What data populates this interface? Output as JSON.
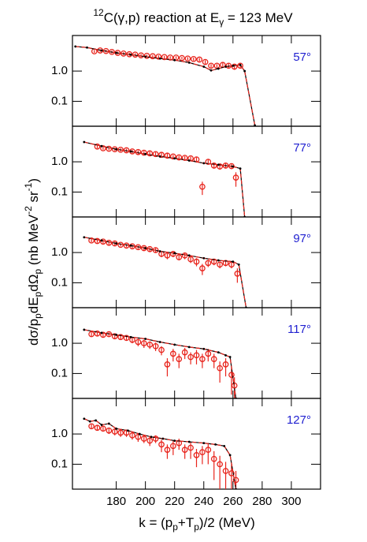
{
  "figure": {
    "title": [
      {
        "text": "12",
        "script": "sup"
      },
      {
        "text": "C(γ,p) reaction at E"
      },
      {
        "text": "γ",
        "script": "sub"
      },
      {
        "text": " = 123 MeV"
      }
    ],
    "ylabel": [
      {
        "text": "dσ/p"
      },
      {
        "text": "p",
        "script": "sub"
      },
      {
        "text": "dE"
      },
      {
        "text": "p",
        "script": "sub"
      },
      {
        "text": "dΩ"
      },
      {
        "text": "p",
        "script": "sub"
      },
      {
        "text": " (nb MeV"
      },
      {
        "text": "-2",
        "script": "sup"
      },
      {
        "text": " sr"
      },
      {
        "text": "-1",
        "script": "sup"
      },
      {
        "text": ")"
      }
    ],
    "xlabel": [
      {
        "text": "k = (p"
      },
      {
        "text": "p",
        "script": "sub"
      },
      {
        "text": "+T"
      },
      {
        "text": "p",
        "script": "sub"
      },
      {
        "text": ")/2 (MeV)"
      }
    ]
  },
  "chart_data": [
    {
      "type": "line",
      "annotation": "57°",
      "annotation_color": "#1f1fd0",
      "log_y": true,
      "xlim": [
        150,
        320
      ],
      "xticks": [
        180,
        200,
        220,
        240,
        260,
        280,
        300
      ],
      "ylim": [
        0.015,
        15
      ],
      "yticks": [
        {
          "value": 1,
          "label": "1.0"
        },
        0.1
      ],
      "series": [
        {
          "color": "#e8241c",
          "marker": "circle",
          "x": [
            165,
            169,
            173,
            177,
            181,
            185,
            189,
            193,
            197,
            201,
            205,
            209,
            213,
            217,
            221,
            225,
            229,
            233,
            237,
            241,
            245,
            249,
            253,
            257,
            261,
            265
          ],
          "values": [
            4.5,
            4.8,
            4.6,
            4.3,
            4.0,
            3.8,
            3.6,
            3.5,
            3.3,
            3.2,
            3.1,
            3.0,
            2.9,
            2.8,
            2.8,
            2.7,
            2.6,
            2.5,
            2.4,
            2.0,
            1.5,
            1.5,
            1.6,
            1.5,
            1.4,
            1.5
          ],
          "errors": [
            0.5,
            0.5,
            0.5,
            0.5,
            0.4,
            0.4,
            0.4,
            0.4,
            0.4,
            0.3,
            0.3,
            0.3,
            0.3,
            0.3,
            0.3,
            0.3,
            0.3,
            0.3,
            0.3,
            0.3,
            0.2,
            0.2,
            0.3,
            0.3,
            0.3,
            0.3
          ]
        },
        {
          "color": "#000000",
          "overlay_color": "#e8241c",
          "x": [
            152,
            160,
            170,
            180,
            190,
            200,
            210,
            220,
            230,
            240,
            245,
            250,
            255,
            260,
            265,
            268,
            275
          ],
          "values": [
            6.5,
            6.0,
            4.8,
            4.0,
            3.5,
            3.0,
            2.6,
            2.3,
            1.9,
            1.4,
            1.05,
            1.2,
            1.4,
            1.5,
            1.6,
            1.0,
            0.016
          ]
        }
      ]
    },
    {
      "type": "line",
      "annotation": "77°",
      "annotation_color": "#1f1fd0",
      "log_y": true,
      "xlim": [
        150,
        320
      ],
      "xticks": [
        180,
        200,
        220,
        240,
        260,
        280,
        300
      ],
      "ylim": [
        0.015,
        15
      ],
      "yticks": [
        {
          "value": 1,
          "label": "1.0"
        },
        0.1
      ],
      "series": [
        {
          "color": "#e8241c",
          "marker": "circle",
          "x": [
            167,
            171,
            175,
            179,
            183,
            187,
            191,
            195,
            199,
            203,
            207,
            211,
            215,
            219,
            223,
            227,
            231,
            235,
            239,
            243,
            247,
            251,
            255,
            259,
            262
          ],
          "values": [
            3.2,
            2.8,
            2.7,
            2.6,
            2.5,
            2.4,
            2.2,
            2.1,
            2.0,
            1.9,
            1.8,
            1.7,
            1.6,
            1.5,
            1.4,
            1.35,
            1.3,
            1.2,
            0.15,
            1.0,
            0.75,
            0.7,
            0.75,
            0.72,
            0.3
          ],
          "errors": [
            0.4,
            0.3,
            0.3,
            0.3,
            0.3,
            0.3,
            0.3,
            0.3,
            0.3,
            0.3,
            0.3,
            0.3,
            0.3,
            0.2,
            0.2,
            0.2,
            0.2,
            0.2,
            0.07,
            0.2,
            0.15,
            0.15,
            0.15,
            0.15,
            0.15
          ]
        },
        {
          "color": "#000000",
          "overlay_color": "#e8241c",
          "x": [
            158,
            170,
            180,
            190,
            200,
            210,
            220,
            230,
            240,
            250,
            260,
            265,
            268
          ],
          "values": [
            4.5,
            3.3,
            2.6,
            2.2,
            1.8,
            1.5,
            1.3,
            1.1,
            0.9,
            0.8,
            0.7,
            0.6,
            0.015
          ]
        }
      ]
    },
    {
      "type": "line",
      "annotation": "97°",
      "annotation_color": "#1f1fd0",
      "log_y": true,
      "xlim": [
        150,
        320
      ],
      "xticks": [
        180,
        200,
        220,
        240,
        260,
        280,
        300
      ],
      "ylim": [
        0.015,
        15
      ],
      "yticks": [
        {
          "value": 1,
          "label": "1.0"
        },
        0.1
      ],
      "series": [
        {
          "color": "#e8241c",
          "marker": "circle",
          "x": [
            163,
            167,
            171,
            175,
            179,
            183,
            187,
            191,
            195,
            199,
            203,
            207,
            211,
            215,
            219,
            223,
            227,
            231,
            235,
            239,
            243,
            247,
            251,
            255,
            259,
            263
          ],
          "values": [
            2.5,
            2.4,
            2.3,
            2.1,
            2.0,
            1.8,
            1.7,
            1.6,
            1.5,
            1.4,
            1.3,
            1.2,
            0.9,
            0.8,
            0.9,
            0.7,
            0.8,
            0.6,
            0.5,
            0.3,
            0.45,
            0.5,
            0.4,
            0.45,
            0.4,
            0.2
          ],
          "errors": [
            0.3,
            0.3,
            0.3,
            0.3,
            0.3,
            0.2,
            0.2,
            0.2,
            0.2,
            0.2,
            0.2,
            0.2,
            0.2,
            0.2,
            0.2,
            0.15,
            0.2,
            0.15,
            0.15,
            0.12,
            0.12,
            0.12,
            0.1,
            0.1,
            0.1,
            0.1
          ]
        },
        {
          "color": "#000000",
          "overlay_color": "#e8241c",
          "x": [
            158,
            170,
            180,
            190,
            200,
            210,
            220,
            230,
            240,
            250,
            260,
            264,
            269
          ],
          "values": [
            3.2,
            2.5,
            2.0,
            1.7,
            1.4,
            1.1,
            0.95,
            0.8,
            0.65,
            0.55,
            0.5,
            0.4,
            0.015
          ]
        }
      ]
    },
    {
      "type": "line",
      "annotation": "117°",
      "annotation_color": "#1f1fd0",
      "log_y": true,
      "xlim": [
        150,
        320
      ],
      "xticks": [
        180,
        200,
        220,
        240,
        260,
        280,
        300
      ],
      "ylim": [
        0.015,
        15
      ],
      "yticks": [
        {
          "value": 1,
          "label": "1.0"
        },
        0.1
      ],
      "series": [
        {
          "color": "#e8241c",
          "marker": "circle",
          "x": [
            163,
            167,
            171,
            175,
            179,
            183,
            187,
            191,
            195,
            199,
            203,
            207,
            211,
            215,
            219,
            223,
            227,
            231,
            235,
            239,
            243,
            247,
            251,
            255,
            259,
            261
          ],
          "values": [
            2.0,
            2.1,
            1.9,
            2.0,
            1.7,
            1.6,
            1.5,
            1.3,
            1.1,
            1.0,
            0.9,
            0.8,
            0.6,
            0.2,
            0.45,
            0.3,
            0.5,
            0.35,
            0.4,
            0.3,
            0.45,
            0.3,
            0.15,
            0.2,
            0.09,
            0.04
          ],
          "errors": [
            0.3,
            0.3,
            0.3,
            0.3,
            0.3,
            0.3,
            0.3,
            0.3,
            0.3,
            0.3,
            0.25,
            0.25,
            0.2,
            0.12,
            0.2,
            0.15,
            0.2,
            0.15,
            0.2,
            0.15,
            0.2,
            0.15,
            0.1,
            0.12,
            0.07,
            0.035
          ]
        },
        {
          "color": "#000000",
          "overlay_color": "#e8241c",
          "x": [
            158,
            170,
            180,
            190,
            200,
            210,
            220,
            230,
            240,
            250,
            255,
            258,
            262
          ],
          "values": [
            2.8,
            2.2,
            1.9,
            1.6,
            1.4,
            1.1,
            0.9,
            0.75,
            0.65,
            0.5,
            0.4,
            0.35,
            0.015
          ]
        }
      ]
    },
    {
      "type": "line",
      "annotation": "127°",
      "annotation_color": "#1f1fd0",
      "log_y": true,
      "xlim": [
        150,
        320
      ],
      "xticks": [
        180,
        200,
        220,
        240,
        260,
        280,
        300
      ],
      "xtick_labels": true,
      "ylim": [
        0.015,
        15
      ],
      "yticks": [
        {
          "value": 1,
          "label": "1.0"
        },
        0.1
      ],
      "series": [
        {
          "color": "#e8241c",
          "marker": "circle",
          "x": [
            163,
            167,
            171,
            175,
            179,
            183,
            187,
            191,
            195,
            199,
            203,
            207,
            211,
            215,
            219,
            223,
            227,
            231,
            235,
            239,
            243,
            247,
            251,
            255,
            259,
            262
          ],
          "values": [
            1.8,
            1.6,
            1.5,
            1.3,
            1.2,
            1.1,
            1.1,
            0.9,
            0.8,
            0.7,
            0.6,
            0.7,
            0.45,
            0.3,
            0.4,
            0.5,
            0.3,
            0.35,
            0.2,
            0.25,
            0.3,
            0.15,
            0.1,
            0.06,
            0.05,
            0.03
          ],
          "errors": [
            0.3,
            0.3,
            0.3,
            0.3,
            0.3,
            0.3,
            0.3,
            0.25,
            0.25,
            0.2,
            0.2,
            0.2,
            0.2,
            0.15,
            0.2,
            0.2,
            0.15,
            0.2,
            0.12,
            0.15,
            0.2,
            0.12,
            0.09,
            0.06,
            0.05,
            0.03
          ]
        },
        {
          "color": "#000000",
          "overlay_color": "#e8241c",
          "x": [
            158,
            162,
            166,
            170,
            175,
            180,
            188,
            196,
            204,
            212,
            220,
            230,
            240,
            248,
            254,
            258,
            262
          ],
          "values": [
            3.2,
            2.6,
            2.8,
            2.0,
            2.2,
            1.5,
            1.3,
            1.0,
            0.8,
            0.7,
            0.6,
            0.55,
            0.5,
            0.45,
            0.4,
            0.2,
            0.015
          ]
        }
      ]
    }
  ]
}
